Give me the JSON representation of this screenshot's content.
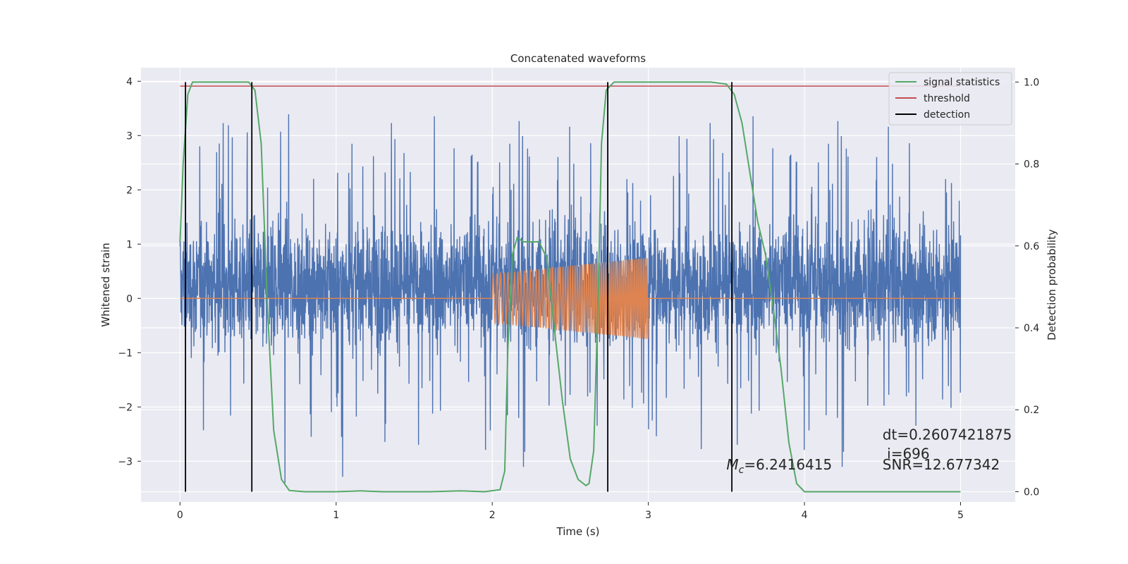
{
  "chart_data": {
    "type": "line",
    "title": "Concatenated waveforms",
    "xlabel": "Time (s)",
    "ylabel": "Whitened strain",
    "y2label": "Detection probability",
    "xlim": [
      -0.25,
      5.35
    ],
    "ylim": [
      -3.75,
      4.25
    ],
    "y2lim": [
      -0.025,
      1.035
    ],
    "xticks": [
      0,
      1,
      2,
      3,
      4,
      5
    ],
    "yticks": [
      -3,
      -2,
      -1,
      0,
      1,
      2,
      3,
      4
    ],
    "y2ticks": [
      0.0,
      0.2,
      0.4,
      0.6,
      0.8,
      1.0
    ],
    "xtick_labels": [
      "0",
      "1",
      "2",
      "3",
      "4",
      "5"
    ],
    "ytick_labels": [
      "−3",
      "−2",
      "−1",
      "0",
      "1",
      "2",
      "3",
      "4"
    ],
    "y2tick_labels": [
      "0.0",
      "0.2",
      "0.4",
      "0.6",
      "0.8",
      "1.0"
    ],
    "grid": true,
    "legend_position": "top-right",
    "series": [
      {
        "name": "",
        "color": "#4c72b0",
        "description": "whitened strain noise",
        "x_range": [
          0,
          5
        ],
        "envelope_typical": [
          -1.5,
          2.2
        ],
        "envelope_extreme": [
          -3.4,
          3.9
        ]
      },
      {
        "name": "",
        "color": "#dd8452",
        "description": "injected chirp",
        "x_range": [
          2.0,
          3.0
        ],
        "amplitude_start": 0.45,
        "amplitude_end": 0.75,
        "value_outside": 0
      },
      {
        "name": "signal statistics",
        "color": "#55a868",
        "axis": "right",
        "x": [
          0.0,
          0.02,
          0.05,
          0.08,
          0.15,
          0.3,
          0.44,
          0.48,
          0.52,
          0.56,
          0.6,
          0.65,
          0.7,
          0.8,
          1.0,
          1.15,
          1.3,
          1.6,
          1.8,
          1.95,
          2.05,
          2.08,
          2.1,
          2.13,
          2.16,
          2.2,
          2.3,
          2.35,
          2.4,
          2.45,
          2.5,
          2.55,
          2.6,
          2.62,
          2.65,
          2.68,
          2.7,
          2.73,
          2.78,
          2.85,
          3.0,
          3.2,
          3.4,
          3.5,
          3.55,
          3.6,
          3.65,
          3.7,
          3.75,
          3.8,
          3.85,
          3.9,
          3.95,
          4.0,
          4.5,
          5.0
        ],
        "y": [
          0.61,
          0.8,
          0.97,
          1.0,
          1.0,
          1.0,
          1.0,
          0.98,
          0.85,
          0.45,
          0.15,
          0.03,
          0.003,
          0.0,
          0.0,
          0.002,
          0.0,
          0.0,
          0.002,
          0.0,
          0.005,
          0.05,
          0.35,
          0.58,
          0.62,
          0.61,
          0.61,
          0.57,
          0.39,
          0.22,
          0.08,
          0.03,
          0.015,
          0.02,
          0.1,
          0.5,
          0.85,
          0.98,
          1.0,
          1.0,
          1.0,
          1.0,
          1.0,
          0.995,
          0.97,
          0.9,
          0.78,
          0.66,
          0.58,
          0.45,
          0.3,
          0.12,
          0.02,
          0.0,
          0.0,
          0.0
        ]
      },
      {
        "name": "threshold",
        "color": "#c44e52",
        "axis": "right",
        "x": [
          0,
          5
        ],
        "y": [
          0.99,
          0.99
        ]
      },
      {
        "name": "detection",
        "color": "#000000",
        "type": "vlines",
        "x": [
          0.035,
          0.46,
          2.74,
          3.535
        ]
      }
    ],
    "annotations": [
      {
        "text": "dt=0.2607421875",
        "x": 4.5,
        "y": -2.6
      },
      {
        "text": " i=696",
        "x": 4.5,
        "y": -2.95
      },
      {
        "text": "SNR=12.677342",
        "x": 4.5,
        "y": -3.15
      },
      {
        "text_main": "M",
        "text_sub": "c",
        "text_rest": "=6.2416415",
        "x": 3.5,
        "y": -3.15
      }
    ]
  }
}
